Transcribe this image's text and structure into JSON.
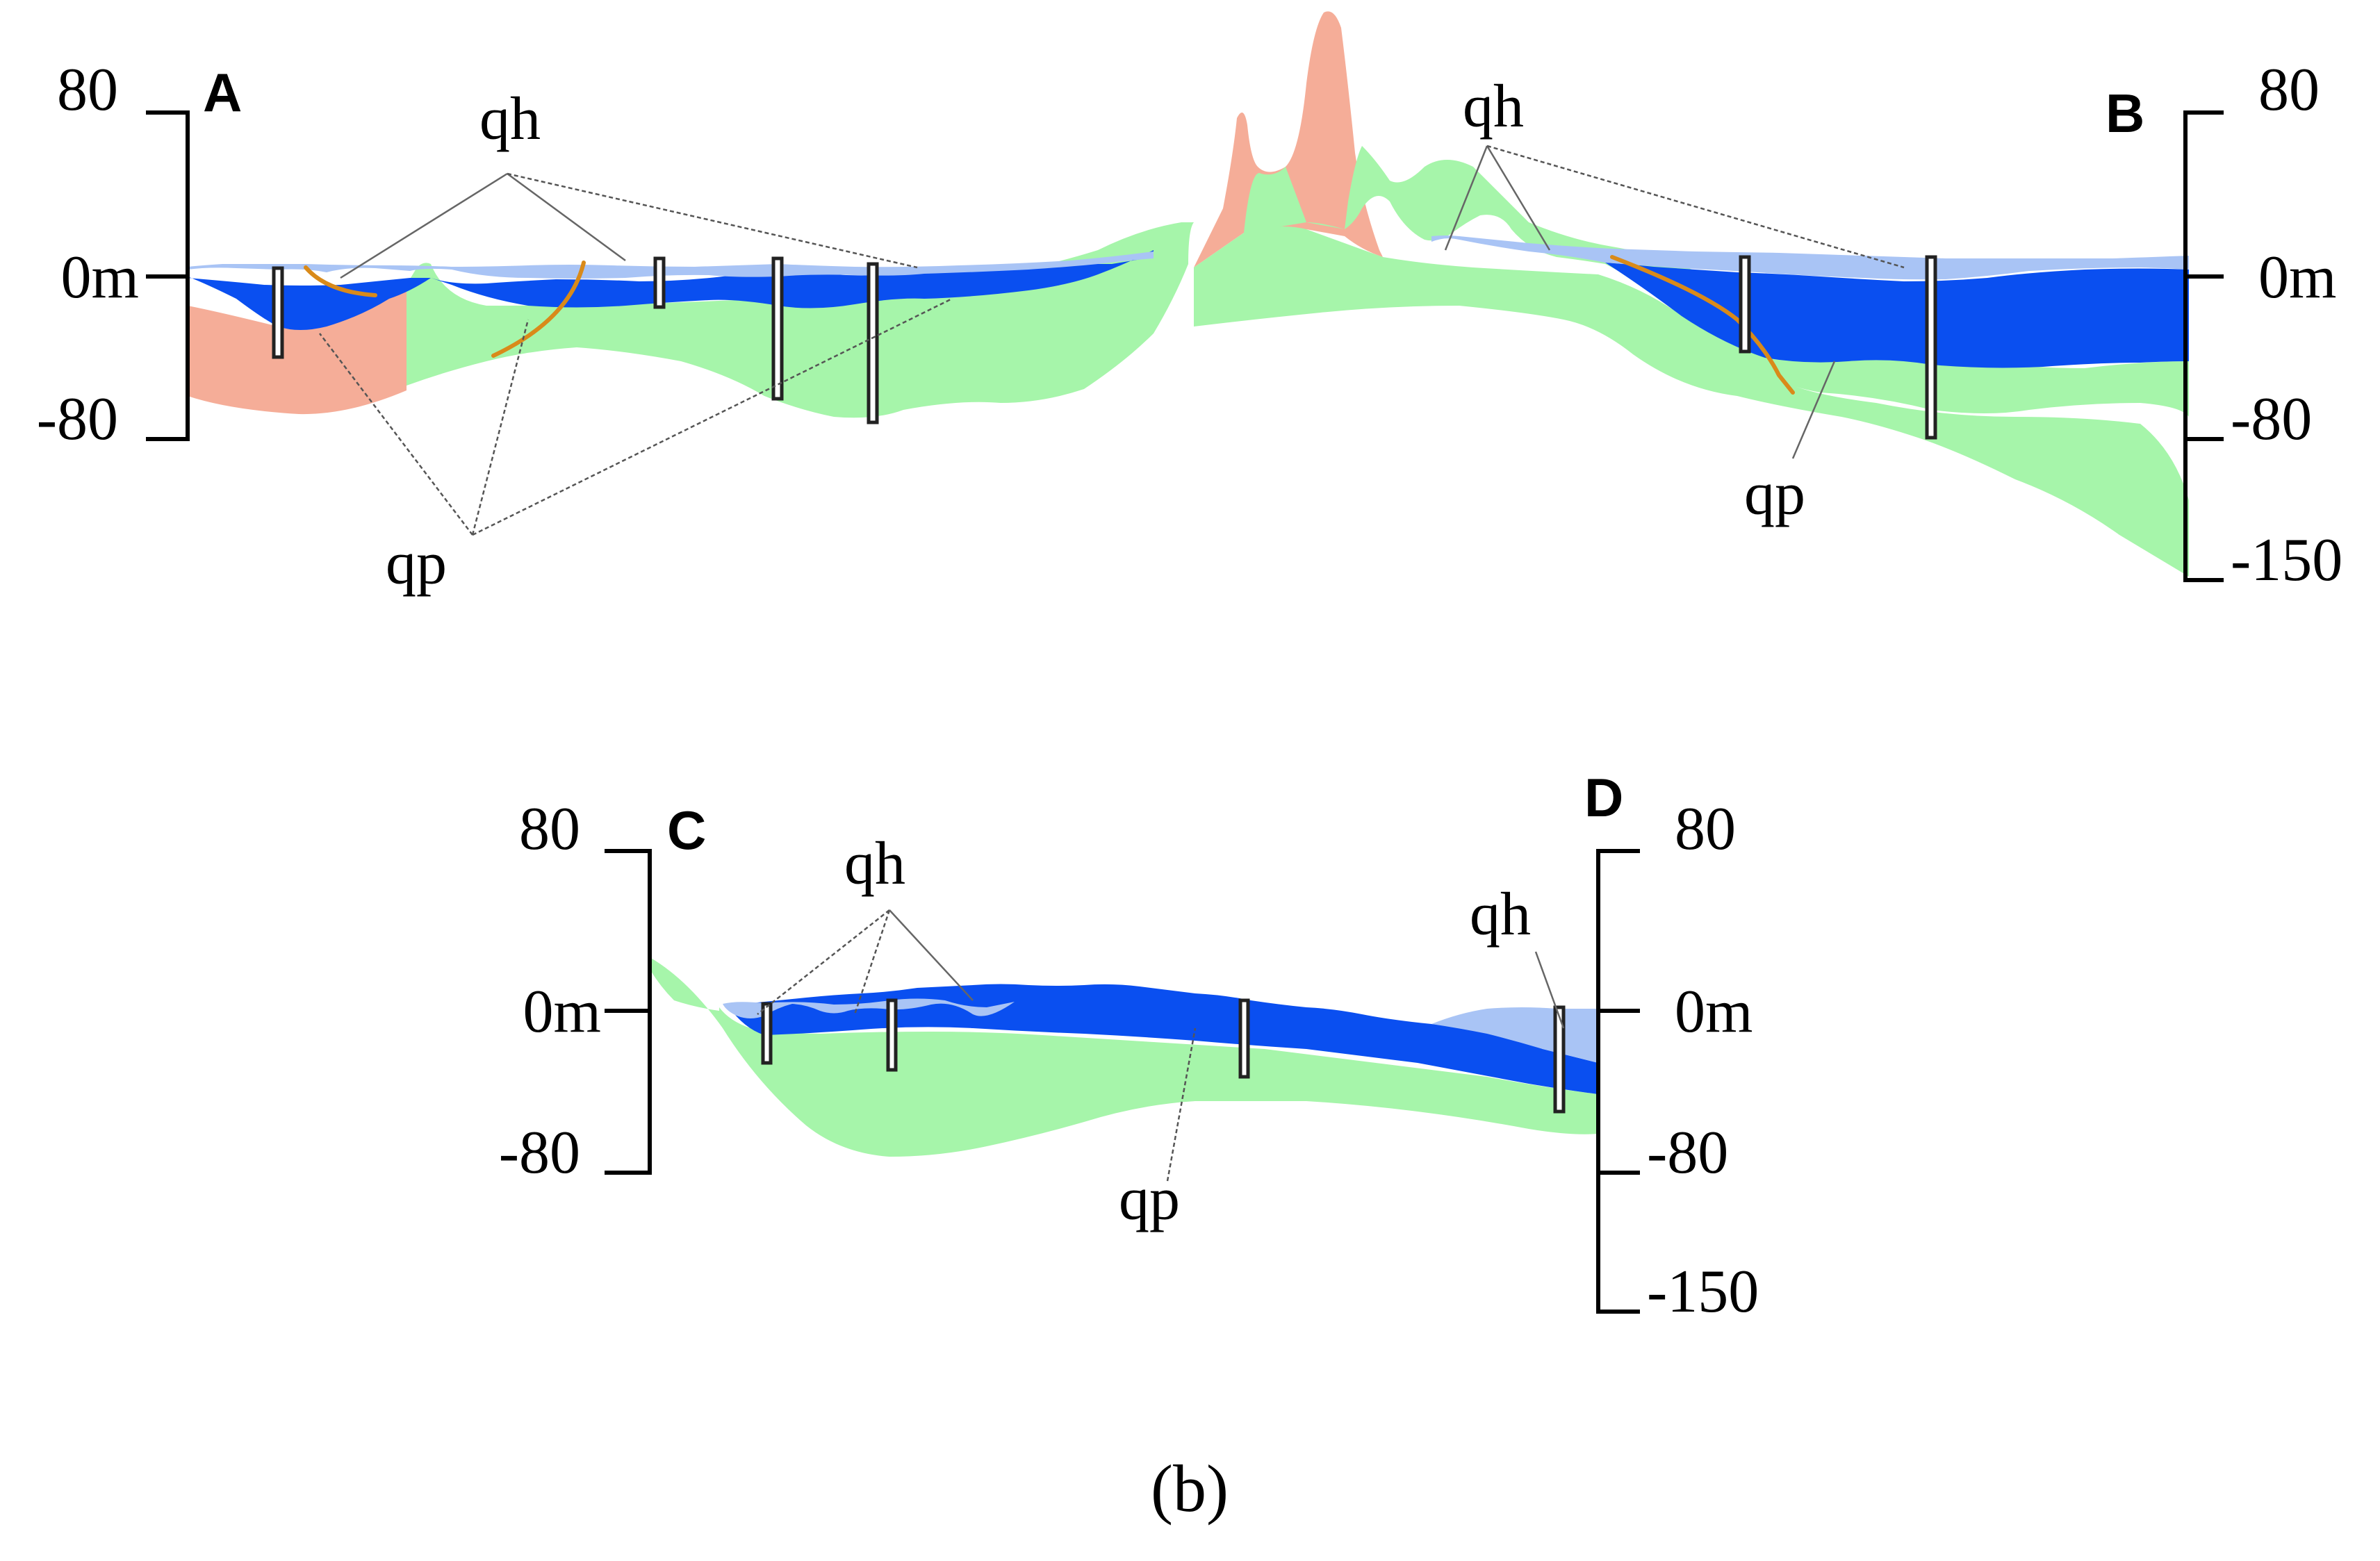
{
  "figure": {
    "caption": "(b)",
    "colors": {
      "qh_light": "#a9c4f5",
      "qp_dark": "#0a4ff0",
      "basement_green": "#a6f5aa",
      "bedrock_salmon": "#f5ad98",
      "fault": "#d98a1a"
    },
    "section_ab": {
      "start_label": "A",
      "end_label": "B",
      "left_axis_ticks": [
        "80",
        "0m",
        "-80"
      ],
      "right_axis_ticks": [
        "80",
        "0m",
        "-80",
        "-150"
      ],
      "qh_label": "qh",
      "qh_label_right": "qh",
      "qp_label": "qp",
      "qp_label_right": "qp"
    },
    "section_cd": {
      "start_label": "C",
      "end_label": "D",
      "left_axis_ticks": [
        "80",
        "0m",
        "-80"
      ],
      "right_axis_ticks": [
        "80",
        "0m",
        "-80",
        "-150"
      ],
      "qh_label": "qh",
      "qh_label_right": "qh",
      "qp_label": "qp"
    }
  }
}
